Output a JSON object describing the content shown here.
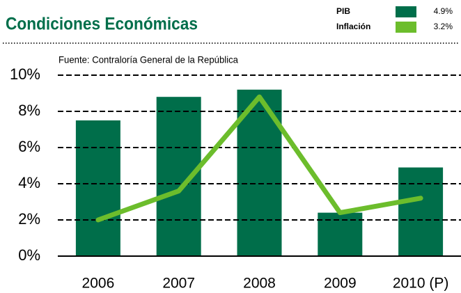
{
  "chart_data": {
    "type": "bar_line",
    "title": "Condiciones Económicas",
    "source": "Fuente: Contraloría General de la República",
    "categories": [
      "2006",
      "2007",
      "2008",
      "2009",
      "2010 (P)"
    ],
    "series": [
      {
        "name": "PIB",
        "type": "bar",
        "color": "#006e4a",
        "values": [
          7.5,
          8.8,
          9.2,
          2.4,
          4.9
        ],
        "legend_value": "4.9%"
      },
      {
        "name": "Inflación",
        "type": "line",
        "color": "#6cbd2c",
        "values": [
          2.0,
          3.6,
          8.8,
          2.4,
          3.2
        ],
        "legend_value": "3.2%"
      }
    ],
    "ylim": [
      0,
      10
    ],
    "yticks": [
      {
        "value": 0,
        "label": "0%"
      },
      {
        "value": 2,
        "label": "2%"
      },
      {
        "value": 4,
        "label": "4%"
      },
      {
        "value": 6,
        "label": "6%"
      },
      {
        "value": 8,
        "label": "8%"
      },
      {
        "value": 10,
        "label": "10%"
      }
    ],
    "grid": true
  }
}
